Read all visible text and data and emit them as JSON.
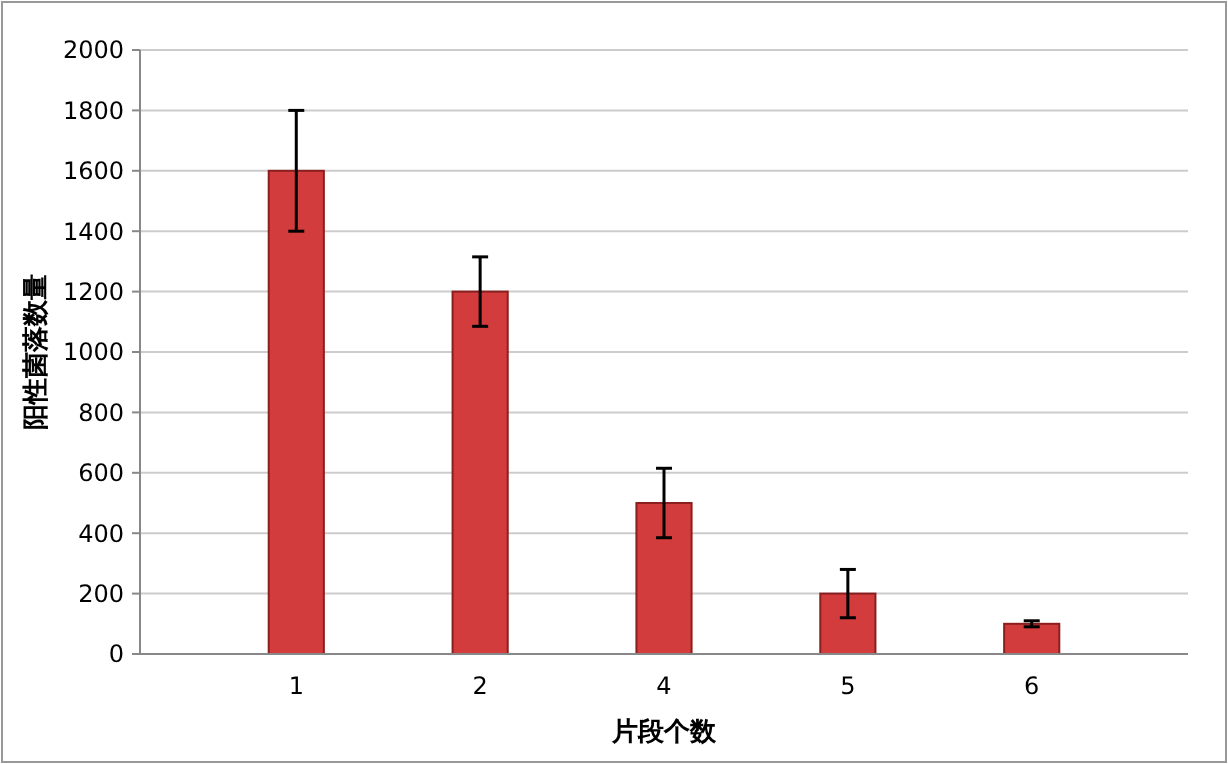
{
  "chart_data": {
    "type": "bar",
    "xlabel": "片段个数",
    "ylabel": "阳性菌落数量",
    "categories": [
      "1",
      "2",
      "4",
      "5",
      "6"
    ],
    "values": [
      1600,
      1200,
      500,
      200,
      100
    ],
    "errors": [
      200,
      115,
      115,
      80,
      10
    ],
    "color": "#d33c3c",
    "ylim": [
      0,
      2000
    ],
    "yticks": [
      0,
      200,
      400,
      600,
      800,
      1000,
      1200,
      1400,
      1600,
      1800,
      2000
    ],
    "grid": "y"
  }
}
